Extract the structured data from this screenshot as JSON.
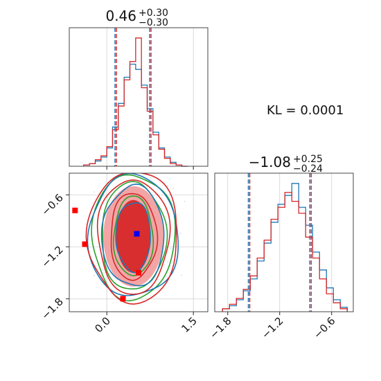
{
  "colors": {
    "blue": "#1f77b4",
    "red": "#d62728",
    "green": "#2ca02c",
    "pink": "#f2a0a0",
    "marker_blue": "#0000ff",
    "marker_red": "#ff0000"
  },
  "annotation": {
    "text": "KL = 0.0001"
  },
  "chart_data": [
    {
      "type": "histogram",
      "panel": "top-left marginal (parameter 1)",
      "title_value": "0.46",
      "title_plus": "+0.30",
      "title_minus": "−0.30",
      "xlim": [
        -0.65,
        1.75
      ],
      "quantile_lines": [
        0.16,
        0.76
      ],
      "bins": [
        -0.35,
        -0.25,
        -0.15,
        -0.05,
        0.05,
        0.15,
        0.25,
        0.35,
        0.45,
        0.55,
        0.65,
        0.75,
        0.85,
        0.95,
        1.05,
        1.15,
        1.25,
        1.35
      ],
      "series": [
        {
          "name": "",
          "color": "blue",
          "counts": [
            1,
            2,
            4,
            7,
            14,
            30,
            48,
            68,
            78,
            74,
            62,
            44,
            26,
            14,
            7,
            3,
            1,
            0
          ]
        },
        {
          "name": "",
          "color": "red",
          "counts": [
            1,
            2,
            5,
            8,
            15,
            28,
            46,
            66,
            80,
            98,
            60,
            42,
            24,
            13,
            6,
            2,
            1,
            0
          ]
        }
      ]
    },
    {
      "type": "histogram",
      "panel": "bottom-right marginal (parameter 2)",
      "title_value": "−1.08",
      "title_plus": "+0.25",
      "title_minus": "−0.24",
      "xlim": [
        -1.95,
        -0.35
      ],
      "xticks": [
        -1.8,
        -1.2,
        -0.6
      ],
      "xtick_labels": [
        "−1.8",
        "−1.2",
        "−0.6"
      ],
      "quantile_lines": [
        -1.55,
        -0.84
      ],
      "bins": [
        -1.82,
        -1.74,
        -1.66,
        -1.58,
        -1.5,
        -1.42,
        -1.34,
        -1.26,
        -1.18,
        -1.1,
        -1.02,
        -0.94,
        -0.86,
        -0.78,
        -0.7,
        -0.62,
        -0.54,
        -0.46
      ],
      "series": [
        {
          "name": "",
          "color": "blue",
          "counts": [
            2,
            4,
            8,
            14,
            22,
            34,
            46,
            60,
            72,
            78,
            86,
            70,
            58,
            40,
            28,
            16,
            8,
            3
          ]
        },
        {
          "name": "",
          "color": "red",
          "counts": [
            2,
            5,
            9,
            15,
            24,
            36,
            48,
            62,
            70,
            80,
            74,
            66,
            50,
            36,
            22,
            12,
            6,
            2
          ]
        }
      ]
    },
    {
      "type": "contour",
      "panel": "bottom-left joint (parameter 1 vs parameter 2)",
      "xlim": [
        -0.65,
        1.75
      ],
      "ylim": [
        -1.95,
        -0.35
      ],
      "xticks": [
        0.0,
        1.5
      ],
      "xtick_labels": [
        "0.0",
        "1.5"
      ],
      "yticks": [
        -0.6,
        -1.2,
        -1.8
      ],
      "ytick_labels": [
        "−0.6",
        "−1.2",
        "−1.8"
      ],
      "center": {
        "x": 0.46,
        "y": -1.08
      },
      "red_filled_levels": [
        {
          "rx": 0.3,
          "ry": 0.42,
          "fill": "red"
        },
        {
          "rx": 0.52,
          "ry": 0.58,
          "fill": "pink"
        }
      ],
      "contour_lines": [
        {
          "color": "green",
          "rx": 0.34,
          "ry": 0.46
        },
        {
          "color": "green",
          "rx": 0.56,
          "ry": 0.62
        },
        {
          "color": "green",
          "rx": 0.72,
          "ry": 0.72
        },
        {
          "color": "blue",
          "rx": 0.3,
          "ry": 0.4
        },
        {
          "color": "blue",
          "rx": 0.54,
          "ry": 0.58
        },
        {
          "color": "blue",
          "rx": 0.78,
          "ry": 0.7
        },
        {
          "color": "red",
          "rx": 0.4,
          "ry": 0.5
        },
        {
          "color": "red",
          "rx": 0.62,
          "ry": 0.66
        },
        {
          "color": "red",
          "rx": 0.78,
          "ry": 0.76
        }
      ],
      "markers": [
        {
          "x": 0.52,
          "y": -1.05,
          "color": "marker_blue"
        },
        {
          "x": -0.55,
          "y": -0.78,
          "color": "marker_red"
        },
        {
          "x": -0.38,
          "y": -1.17,
          "color": "marker_red"
        },
        {
          "x": 0.55,
          "y": -1.5,
          "color": "marker_red"
        },
        {
          "x": 0.28,
          "y": -1.8,
          "color": "marker_red"
        }
      ]
    }
  ]
}
